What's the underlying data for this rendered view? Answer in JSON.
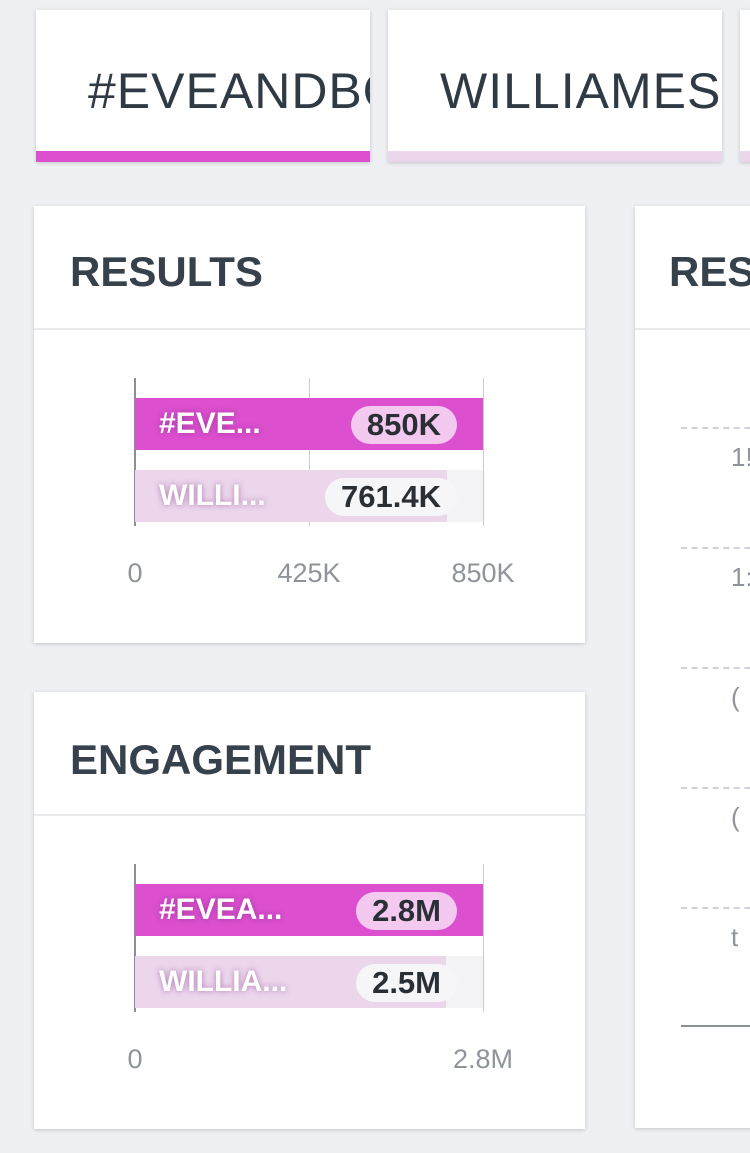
{
  "tabs": [
    {
      "label": "#EVEANDBO"
    },
    {
      "label": "WILLIAMEST"
    },
    {
      "label": ""
    }
  ],
  "results": {
    "title": "RESULTS",
    "chart_data": {
      "type": "bar",
      "orientation": "horizontal",
      "categories": [
        "#EVE...",
        "WILLI..."
      ],
      "values": [
        850000,
        761400
      ],
      "value_labels": [
        "850K",
        "761.4K"
      ],
      "xlim": [
        0,
        850000
      ],
      "ticks": [
        {
          "value": 0,
          "label": "0"
        },
        {
          "value": 425000,
          "label": "425K"
        },
        {
          "value": 850000,
          "label": "850K"
        }
      ],
      "colors": [
        "#dc4fcf",
        "#ecd6ec"
      ]
    }
  },
  "engagement": {
    "title": "ENGAGEMENT",
    "chart_data": {
      "type": "bar",
      "orientation": "horizontal",
      "categories": [
        "#EVEA...",
        "WILLIA..."
      ],
      "values": [
        2800000,
        2500000
      ],
      "value_labels": [
        "2.8M",
        "2.5M"
      ],
      "xlim": [
        0,
        2800000
      ],
      "ticks": [
        {
          "value": 0,
          "label": "0"
        },
        {
          "value": 2800000,
          "label": "2.8M"
        }
      ],
      "colors": [
        "#dc4fcf",
        "#ecd6ec"
      ]
    }
  },
  "side_card": {
    "title": "RES",
    "tick_labels": [
      "1!",
      "1:",
      "(",
      "(",
      "t"
    ]
  }
}
